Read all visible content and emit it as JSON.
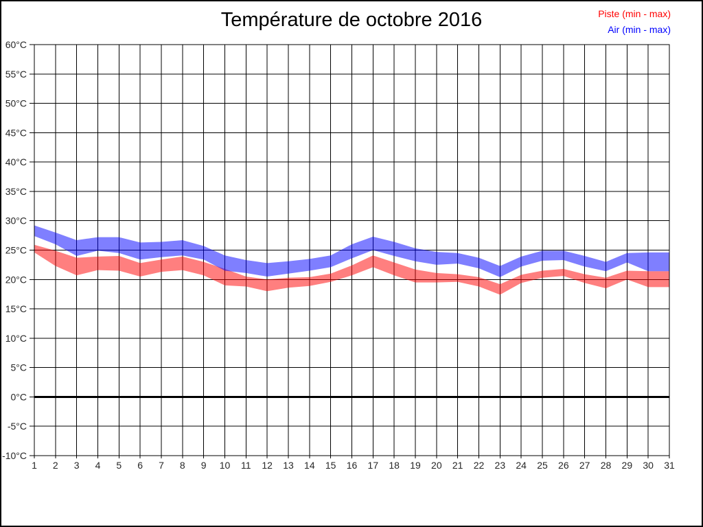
{
  "title": "Température de octobre 2016",
  "legend": [
    {
      "label": "Piste (min - max)",
      "color": "#ff0000"
    },
    {
      "label": "Air (min - max)",
      "color": "#0000ff"
    }
  ],
  "chart_data": {
    "type": "area",
    "title": "Température de octobre 2016",
    "xlabel": "",
    "ylabel": "",
    "ylim": [
      -10,
      60
    ],
    "ytick_step": 5,
    "ytick_suffix": "°C",
    "grid": true,
    "zero_line": true,
    "legend_position": "top-right",
    "days": [
      1,
      2,
      3,
      4,
      5,
      6,
      7,
      8,
      9,
      10,
      11,
      12,
      13,
      14,
      15,
      16,
      17,
      18,
      19,
      20,
      21,
      22,
      23,
      24,
      25,
      26,
      27,
      28,
      29,
      30,
      31
    ],
    "series": [
      {
        "id": "piste",
        "name": "Piste (min - max)",
        "color": "#ff0000",
        "fill_opacity": 0.5,
        "min": [
          24.6,
          22.3,
          20.7,
          21.6,
          21.5,
          20.5,
          21.3,
          21.6,
          20.7,
          19.0,
          18.8,
          18.0,
          18.6,
          18.9,
          19.6,
          20.7,
          22.1,
          20.7,
          19.5,
          19.5,
          19.6,
          18.8,
          17.4,
          19.4,
          20.3,
          20.6,
          19.4,
          18.5,
          20.0,
          18.7,
          18.7
        ],
        "max": [
          25.9,
          24.9,
          23.7,
          23.9,
          24.0,
          22.8,
          23.4,
          23.9,
          23.0,
          21.8,
          20.5,
          20.0,
          20.3,
          20.4,
          21.0,
          22.4,
          24.1,
          22.9,
          21.7,
          21.1,
          20.9,
          20.4,
          19.2,
          20.8,
          21.5,
          21.8,
          20.9,
          20.3,
          21.5,
          21.4,
          21.4
        ]
      },
      {
        "id": "air",
        "name": "Air (min - max)",
        "color": "#0000ff",
        "fill_opacity": 0.5,
        "min": [
          27.4,
          26.0,
          24.0,
          24.9,
          24.5,
          23.4,
          23.8,
          24.1,
          23.4,
          21.5,
          21.1,
          20.5,
          21.0,
          21.5,
          22.1,
          23.6,
          25.0,
          24.0,
          23.1,
          22.5,
          22.7,
          21.9,
          20.4,
          22.2,
          23.2,
          23.3,
          22.2,
          21.4,
          22.9,
          21.4,
          21.4
        ],
        "max": [
          29.2,
          28.0,
          26.7,
          27.2,
          27.2,
          26.3,
          26.4,
          26.7,
          25.7,
          24.1,
          23.3,
          22.8,
          23.1,
          23.5,
          24.1,
          26.0,
          27.3,
          26.4,
          25.3,
          24.7,
          24.5,
          23.7,
          22.3,
          23.9,
          24.9,
          24.9,
          24.0,
          23.0,
          24.5,
          24.6,
          24.6
        ]
      }
    ]
  }
}
